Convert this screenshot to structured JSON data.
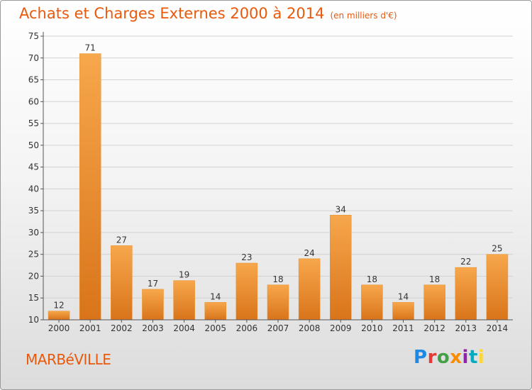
{
  "title": "Achats et Charges Externes 2000 à 2014",
  "unit": "(en milliers d'€)",
  "town": "MARBéVILLE",
  "logo": {
    "text": "Proxiti",
    "colors": [
      "#1e88e5",
      "#e53935",
      "#43a047",
      "#fb8c00",
      "#8e24aa",
      "#00acc1",
      "#fdd835"
    ]
  },
  "colors": {
    "bar_light": "#f7a74c",
    "bar_dark": "#d9741a",
    "accent": "#e8590c",
    "axis": "#555555"
  },
  "chart_data": {
    "type": "bar",
    "categories": [
      "2000",
      "2001",
      "2002",
      "2003",
      "2004",
      "2005",
      "2006",
      "2007",
      "2008",
      "2009",
      "2010",
      "2011",
      "2012",
      "2013",
      "2014"
    ],
    "values": [
      12,
      71,
      27,
      17,
      19,
      14,
      23,
      18,
      24,
      34,
      18,
      14,
      18,
      22,
      25
    ],
    "title": "Achats et Charges Externes 2000 à 2014",
    "xlabel": "",
    "ylabel": "",
    "ylim": [
      10,
      75
    ],
    "yticks": [
      10,
      15,
      20,
      25,
      30,
      35,
      40,
      45,
      50,
      55,
      60,
      65,
      70,
      75
    ],
    "grid": true,
    "data_labels": true
  }
}
